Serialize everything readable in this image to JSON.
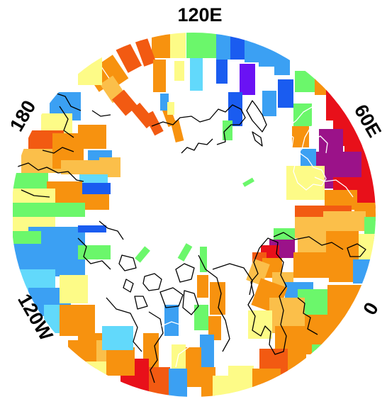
{
  "map": {
    "projection": "north-polar-stereographic",
    "longitude_labels": {
      "top": "120E",
      "upper_left": "180",
      "upper_right": "60E",
      "lower_left": "120W",
      "lower_right": "0"
    },
    "palette": {
      "red": "#e8101a",
      "red_orange": "#f25a12",
      "orange": "#f7920f",
      "light_orange": "#fbbf4a",
      "yellow": "#fdfb87",
      "green": "#6bf76b",
      "cyan": "#62d9fb",
      "sky_blue": "#3ba0f3",
      "blue": "#1a5cf0",
      "violet": "#6a12f4",
      "purple": "#9b1289",
      "coast": "#000000",
      "coast_on_color": "#ffffff"
    }
  }
}
